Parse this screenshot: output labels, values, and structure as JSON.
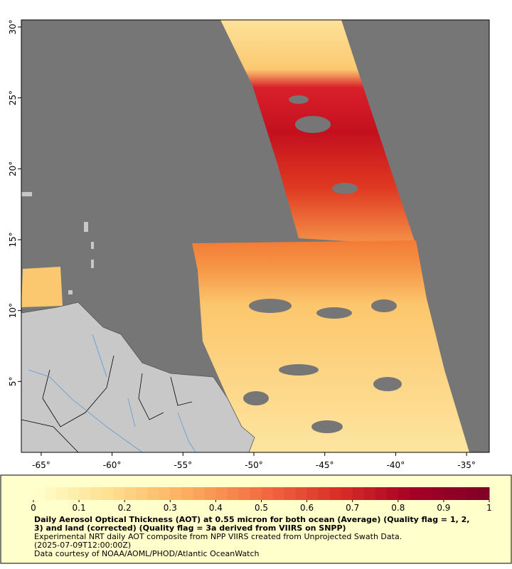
{
  "map": {
    "lonlim": [
      -66.4,
      -33.4
    ],
    "latlim": [
      0,
      30.5
    ],
    "lon_ticks": [
      {
        "value": -65,
        "label": "-65°"
      },
      {
        "value": -60,
        "label": "-60°"
      },
      {
        "value": -55,
        "label": "-55°"
      },
      {
        "value": -50,
        "label": "-50°"
      },
      {
        "value": -45,
        "label": "-45°"
      },
      {
        "value": -40,
        "label": "-40°"
      },
      {
        "value": -35,
        "label": "-35°"
      }
    ],
    "lat_ticks": [
      {
        "value": 5,
        "label": "5°"
      },
      {
        "value": 10,
        "label": "10°"
      },
      {
        "value": 15,
        "label": "15°"
      },
      {
        "value": 20,
        "label": "20°"
      },
      {
        "value": 25,
        "label": "25°"
      },
      {
        "value": 30,
        "label": "30°"
      }
    ],
    "colorbar": {
      "lim": [
        0,
        1
      ],
      "ticks": [
        0,
        0.1,
        0.2,
        0.3,
        0.4,
        0.5,
        0.6,
        0.7,
        0.8,
        0.9,
        1
      ]
    },
    "caption": {
      "title": "Daily Aerosol Optical Thickness (AOT) at 0.55 micron for both ocean (Average) (Quality flag = 1, 2, 3) and land (corrected) (Quality flag = 3a derived from VIIRS on SNPP)",
      "lines": [
        "Experimental NRT daily AOT composite from NPP VIIRS created from Unprojected Swath Data.",
        "(2025-07-09T12:00:00Z)",
        "Data courtesy of NOAA/AOML/PHOD/Atlantic OceanWatch"
      ]
    }
  }
}
